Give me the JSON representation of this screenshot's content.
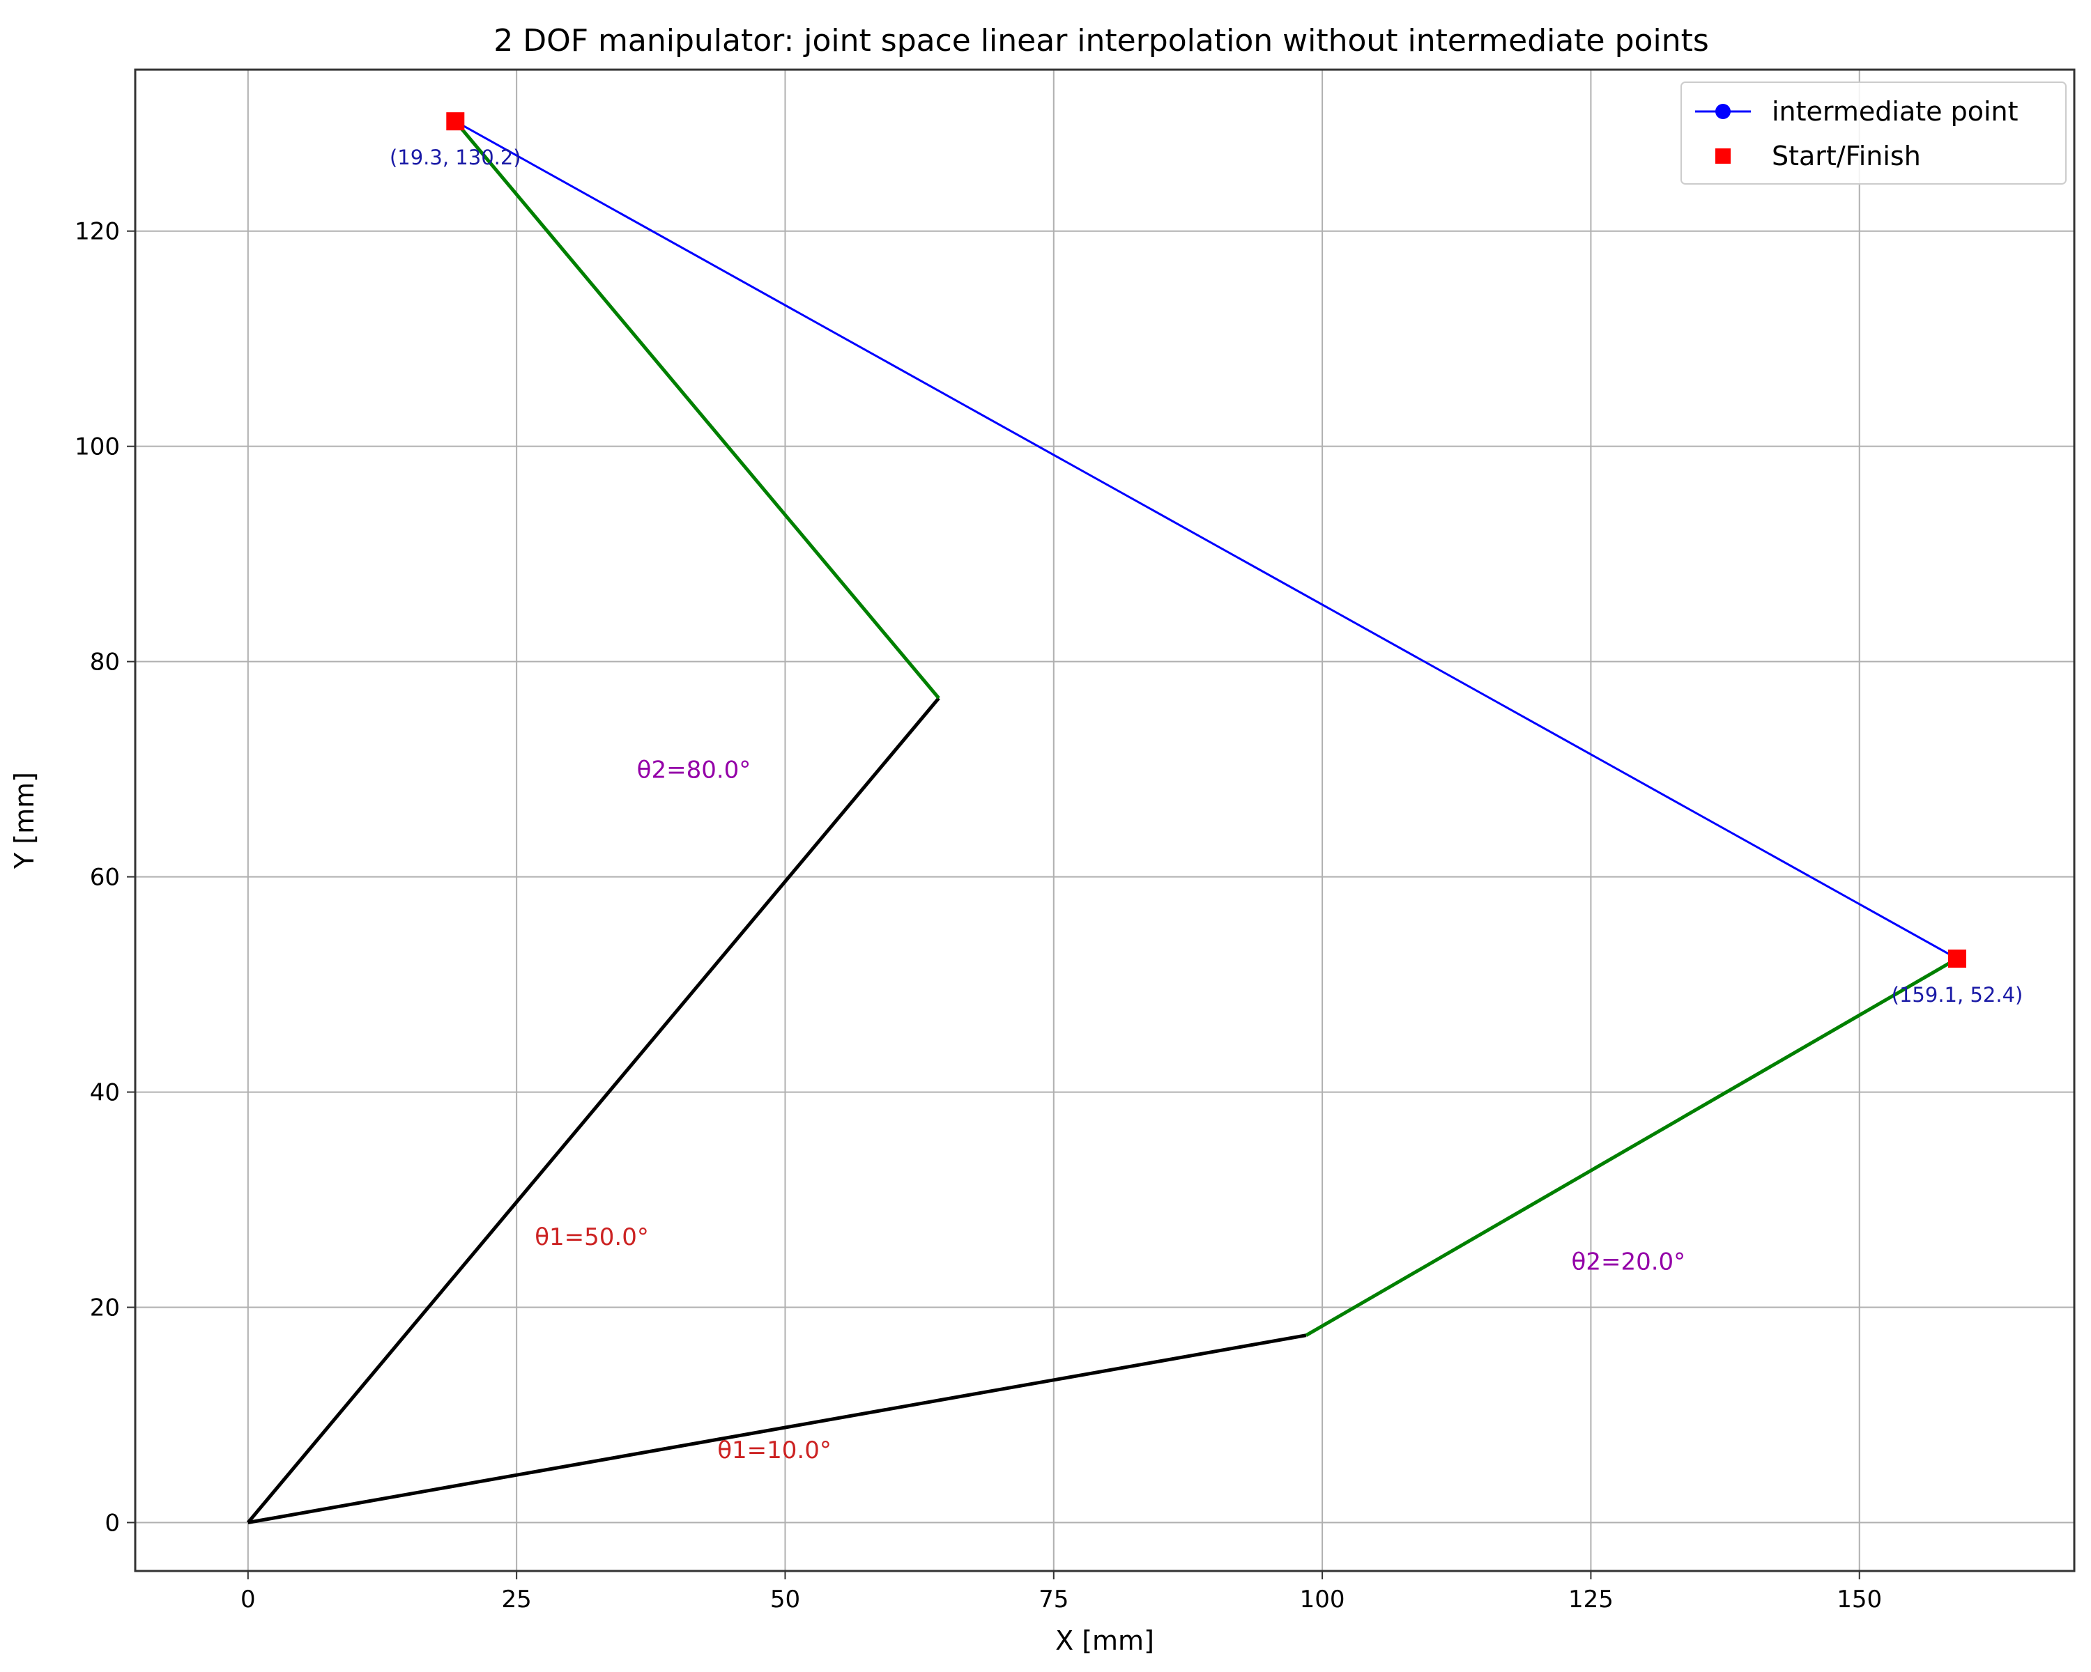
{
  "chart_data": {
    "type": "line",
    "title": "2 DOF manipulator: joint space linear interpolation without intermediate points",
    "xlabel": "X [mm]",
    "ylabel": "Y [mm]",
    "xlim": [
      -10.5,
      170
    ],
    "ylim": [
      -4.5,
      135
    ],
    "xticks": [
      0,
      25,
      50,
      75,
      100,
      125,
      150
    ],
    "yticks": [
      0,
      20,
      40,
      60,
      80,
      100,
      120
    ],
    "grid": true,
    "legend": {
      "placement": "top-right",
      "entries": [
        {
          "label": "intermediate point",
          "marker": "circle",
          "color": "#0000ff",
          "line": true
        },
        {
          "label": "Start/Finish",
          "marker": "square",
          "color": "#ff0000",
          "line": false
        }
      ]
    },
    "series": [
      {
        "name": "intermediate point",
        "color": "#0000ff",
        "points": [
          [
            19.3,
            130.2
          ],
          [
            159.1,
            52.4
          ]
        ]
      }
    ],
    "segments": [
      {
        "id": "link1-start",
        "color": "#000000",
        "points": [
          [
            0,
            0
          ],
          [
            64.3,
            76.6
          ]
        ]
      },
      {
        "id": "link2-start",
        "color": "#008000",
        "points": [
          [
            64.3,
            76.6
          ],
          [
            19.3,
            130.2
          ]
        ]
      },
      {
        "id": "link1-finish",
        "color": "#000000",
        "points": [
          [
            0,
            0
          ],
          [
            98.5,
            17.4
          ]
        ]
      },
      {
        "id": "link2-finish",
        "color": "#008000",
        "points": [
          [
            98.5,
            17.4
          ],
          [
            159.1,
            52.4
          ]
        ]
      }
    ],
    "markers": [
      {
        "x": 19.3,
        "y": 130.2,
        "color": "#ff0000"
      },
      {
        "x": 159.1,
        "y": 52.4,
        "color": "#ff0000"
      }
    ],
    "annotations": [
      {
        "text": "(19.3, 130.2)",
        "x": 19.3,
        "y": 126.2,
        "color": "#1a1aa6",
        "cls": "coord-label"
      },
      {
        "text": "(159.1, 52.4)",
        "x": 159.1,
        "y": 48.4,
        "color": "#1a1aa6",
        "cls": "coord-label"
      },
      {
        "text": "θ2=80.0°",
        "x": 41.5,
        "y": 69.2,
        "color": "#9400a8",
        "cls": "angle-label"
      },
      {
        "text": "θ1=50.0°",
        "x": 32,
        "y": 25.8,
        "color": "#cc2222",
        "cls": "angle-label"
      },
      {
        "text": "θ2=20.0°",
        "x": 128.5,
        "y": 23.5,
        "color": "#9400a8",
        "cls": "angle-label"
      },
      {
        "text": "θ1=10.0°",
        "x": 49,
        "y": 6,
        "color": "#cc2222",
        "cls": "angle-label"
      }
    ]
  }
}
